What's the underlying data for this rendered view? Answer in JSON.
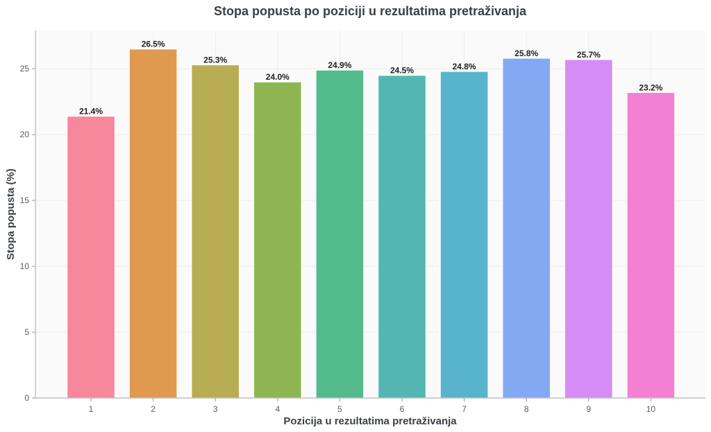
{
  "chart_data": {
    "type": "bar",
    "title": "Stopa popusta po poziciji u rezultatima pretraživanja",
    "xlabel": "Pozicija u rezultatima pretraživanja",
    "ylabel": "Stopa popusta (%)",
    "categories": [
      "1",
      "2",
      "3",
      "4",
      "5",
      "6",
      "7",
      "8",
      "9",
      "10"
    ],
    "values": [
      21.4,
      26.5,
      25.3,
      24.0,
      24.9,
      24.5,
      24.8,
      25.8,
      25.7,
      23.2
    ],
    "value_labels": [
      "21.4%",
      "26.5%",
      "25.3%",
      "24.0%",
      "24.9%",
      "24.5%",
      "24.8%",
      "25.8%",
      "25.7%",
      "23.2%"
    ],
    "colors": [
      "#f7879a",
      "#df9a50",
      "#b8ad52",
      "#8db653",
      "#53ba8b",
      "#53b6b2",
      "#58b4cc",
      "#84a9f3",
      "#d58cf4",
      "#f480d4"
    ],
    "ylim": [
      0,
      27.9
    ],
    "yticks": [
      0,
      5,
      10,
      15,
      20,
      25
    ],
    "ytick_labels": [
      "0",
      "5",
      "10",
      "15",
      "20",
      "25"
    ],
    "grid": true,
    "background": "#fafafa"
  }
}
